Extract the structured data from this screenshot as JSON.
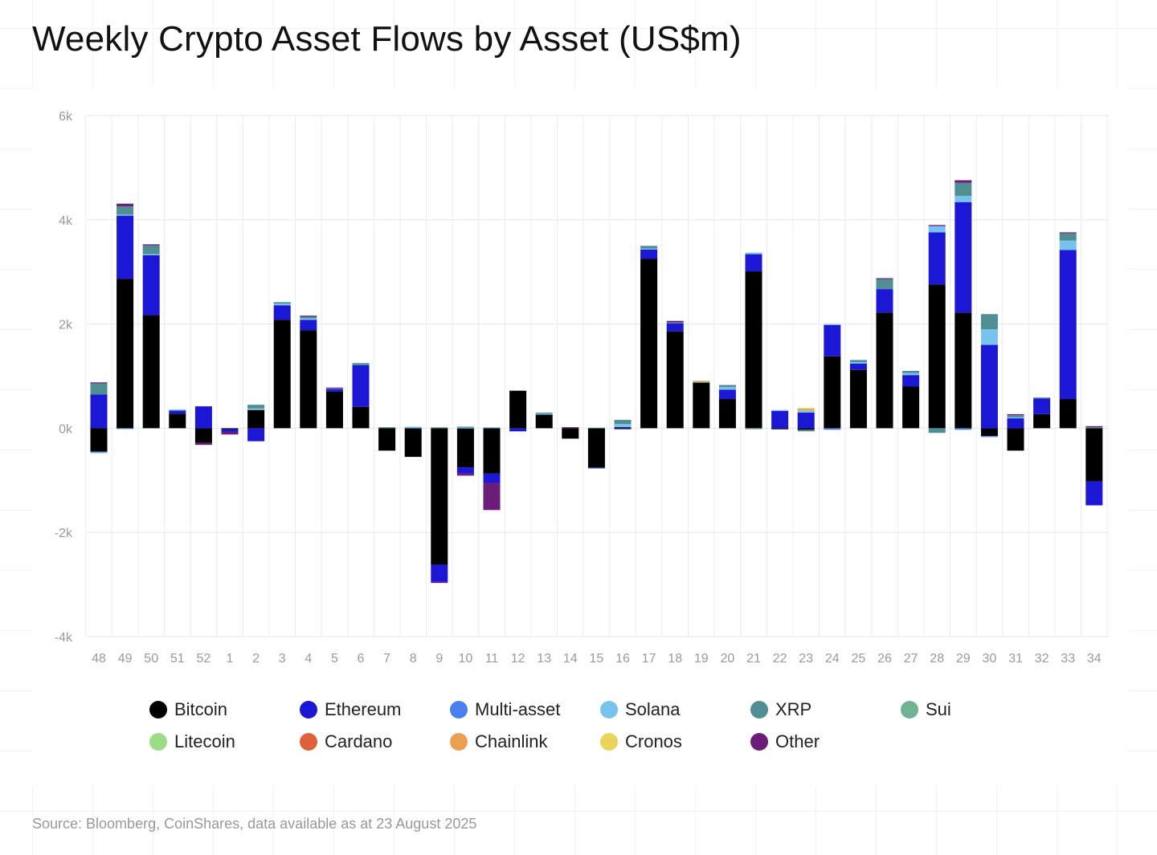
{
  "title": "Weekly Crypto Asset Flows by Asset (US$m)",
  "source": "Source: Bloomberg, CoinShares, data available as at 23 August 2025",
  "chart_data": {
    "type": "bar",
    "stacked": true,
    "title": "Weekly Crypto Asset Flows by Asset (US$m)",
    "xlabel": "",
    "ylabel": "",
    "ylim": [
      -4000,
      6000
    ],
    "yticks": [
      6000,
      4000,
      2000,
      0,
      -2000,
      -4000
    ],
    "ytick_labels": [
      "6k",
      "4k",
      "2k",
      "0k",
      "-2k",
      "-4k"
    ],
    "grid": true,
    "categories": [
      "48",
      "49",
      "50",
      "51",
      "52",
      "1",
      "2",
      "3",
      "4",
      "5",
      "6",
      "7",
      "8",
      "9",
      "10",
      "11",
      "12",
      "13",
      "14",
      "15",
      "16",
      "17",
      "18",
      "19",
      "20",
      "21",
      "22",
      "23",
      "24",
      "25",
      "26",
      "27",
      "28",
      "29",
      "30",
      "31",
      "32",
      "33",
      "34"
    ],
    "series": [
      {
        "name": "Bitcoin",
        "color": "#000000",
        "values": [
          -450,
          2870,
          2170,
          280,
          -280,
          -20,
          350,
          2080,
          1880,
          700,
          410,
          -430,
          -550,
          -2620,
          -750,
          -870,
          720,
          260,
          -200,
          -760,
          20,
          3250,
          1860,
          870,
          560,
          3010,
          -20,
          -30,
          1380,
          1120,
          2220,
          800,
          2760,
          2220,
          -150,
          -430,
          270,
          560,
          -1020
        ]
      },
      {
        "name": "Ethereum",
        "color": "#1c17d4",
        "values": [
          650,
          1210,
          1150,
          60,
          420,
          -50,
          -250,
          280,
          200,
          50,
          800,
          0,
          0,
          -330,
          -120,
          -180,
          -60,
          0,
          0,
          0,
          -20,
          180,
          150,
          0,
          180,
          330,
          330,
          300,
          600,
          120,
          450,
          220,
          1000,
          2120,
          1600,
          190,
          300,
          2860,
          -460
        ]
      },
      {
        "name": "Multi-asset",
        "color": "#4a7ff0",
        "values": [
          -10,
          -10,
          0,
          0,
          0,
          0,
          0,
          0,
          0,
          0,
          0,
          0,
          0,
          0,
          0,
          0,
          0,
          0,
          0,
          -10,
          0,
          0,
          0,
          0,
          0,
          0,
          0,
          0,
          -30,
          0,
          0,
          0,
          0,
          -30,
          -20,
          0,
          0,
          0,
          0
        ]
      },
      {
        "name": "Solana",
        "color": "#77c3ee",
        "values": [
          -20,
          20,
          20,
          20,
          0,
          0,
          30,
          30,
          30,
          0,
          0,
          0,
          30,
          0,
          10,
          20,
          0,
          20,
          0,
          0,
          60,
          20,
          0,
          0,
          50,
          30,
          20,
          40,
          20,
          30,
          0,
          40,
          120,
          120,
          300,
          20,
          0,
          180,
          0
        ]
      },
      {
        "name": "XRP",
        "color": "#4f8e93",
        "values": [
          210,
          160,
          170,
          0,
          0,
          0,
          70,
          30,
          30,
          20,
          40,
          20,
          0,
          0,
          20,
          0,
          0,
          20,
          0,
          10,
          80,
          50,
          20,
          20,
          40,
          0,
          0,
          -30,
          0,
          40,
          190,
          40,
          -90,
          250,
          290,
          40,
          20,
          140,
          20
        ]
      },
      {
        "name": "Sui",
        "color": "#6fb393",
        "values": [
          0,
          0,
          0,
          0,
          0,
          0,
          0,
          0,
          0,
          0,
          0,
          0,
          0,
          20,
          0,
          0,
          0,
          0,
          0,
          0,
          0,
          0,
          0,
          0,
          0,
          -20,
          0,
          0,
          0,
          0,
          0,
          0,
          0,
          0,
          0,
          0,
          0,
          0,
          0
        ]
      },
      {
        "name": "Litecoin",
        "color": "#9bdd87",
        "values": [
          0,
          0,
          0,
          0,
          0,
          0,
          0,
          0,
          0,
          0,
          0,
          0,
          0,
          0,
          0,
          0,
          0,
          0,
          0,
          0,
          0,
          0,
          0,
          0,
          0,
          0,
          0,
          0,
          0,
          0,
          0,
          0,
          0,
          0,
          0,
          0,
          0,
          0,
          0
        ]
      },
      {
        "name": "Cardano",
        "color": "#e0603b",
        "values": [
          0,
          0,
          0,
          0,
          0,
          0,
          0,
          0,
          0,
          0,
          0,
          0,
          0,
          0,
          0,
          0,
          0,
          0,
          0,
          0,
          0,
          0,
          0,
          0,
          0,
          0,
          0,
          0,
          0,
          0,
          0,
          0,
          0,
          0,
          0,
          0,
          0,
          0,
          0
        ]
      },
      {
        "name": "Chainlink",
        "color": "#eba04f",
        "values": [
          0,
          0,
          0,
          0,
          0,
          0,
          0,
          0,
          0,
          0,
          0,
          0,
          0,
          0,
          0,
          0,
          0,
          0,
          0,
          0,
          0,
          0,
          0,
          20,
          0,
          0,
          0,
          30,
          0,
          0,
          0,
          0,
          0,
          0,
          0,
          0,
          0,
          0,
          0
        ]
      },
      {
        "name": "Cronos",
        "color": "#ebd45a",
        "values": [
          0,
          0,
          0,
          0,
          0,
          0,
          0,
          0,
          0,
          0,
          0,
          0,
          0,
          0,
          0,
          0,
          0,
          0,
          0,
          0,
          0,
          0,
          0,
          0,
          0,
          0,
          0,
          20,
          0,
          0,
          0,
          0,
          0,
          0,
          0,
          0,
          0,
          0,
          0
        ]
      },
      {
        "name": "Other",
        "color": "#6c1d7a",
        "values": [
          20,
          50,
          20,
          0,
          -40,
          -50,
          0,
          0,
          20,
          10,
          0,
          0,
          0,
          -20,
          -40,
          -520,
          0,
          0,
          20,
          0,
          0,
          0,
          30,
          0,
          0,
          0,
          0,
          0,
          0,
          0,
          20,
          0,
          20,
          50,
          0,
          20,
          0,
          20,
          20
        ]
      }
    ]
  },
  "legend": {
    "items": [
      {
        "label": "Bitcoin",
        "color": "#000000"
      },
      {
        "label": "Ethereum",
        "color": "#1c17d4"
      },
      {
        "label": "Multi-asset",
        "color": "#4a7ff0"
      },
      {
        "label": "Solana",
        "color": "#77c3ee"
      },
      {
        "label": "XRP",
        "color": "#4f8e93"
      },
      {
        "label": "Sui",
        "color": "#6fb393"
      },
      {
        "label": "Litecoin",
        "color": "#9bdd87"
      },
      {
        "label": "Cardano",
        "color": "#e0603b"
      },
      {
        "label": "Chainlink",
        "color": "#eba04f"
      },
      {
        "label": "Cronos",
        "color": "#ebd45a"
      },
      {
        "label": "Other",
        "color": "#6c1d7a"
      }
    ]
  }
}
